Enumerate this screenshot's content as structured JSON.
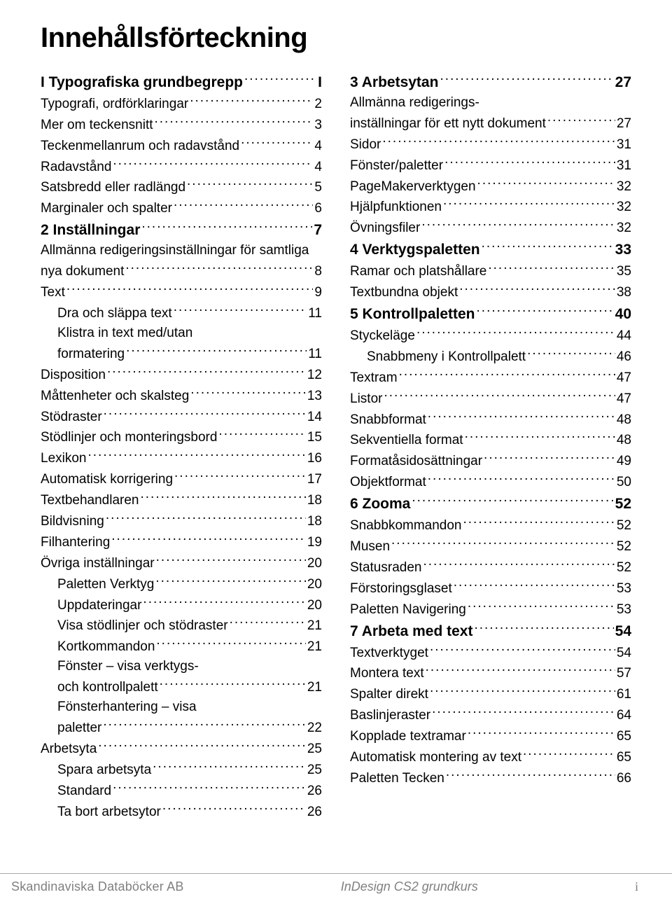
{
  "title": "Innehållsförteckning",
  "footer": {
    "left": "Skandinaviska Databöcker AB",
    "center": "InDesign CS2 grundkurs",
    "right": "i"
  },
  "left": [
    {
      "type": "section",
      "label": "I Typografiska grundbegrepp",
      "page": "I",
      "indent": 0
    },
    {
      "label": "Typografi, ordförklaringar",
      "page": "2",
      "indent": 0
    },
    {
      "label": "Mer om teckensnitt",
      "page": "3",
      "indent": 0
    },
    {
      "label": "Teckenmellanrum och radavstånd",
      "page": "4",
      "indent": 0
    },
    {
      "label": "Radavstånd",
      "page": "4",
      "indent": 0
    },
    {
      "label": "Satsbredd eller radlängd",
      "page": "5",
      "indent": 0
    },
    {
      "label": "Marginaler och spalter",
      "page": "6",
      "indent": 0
    },
    {
      "type": "section",
      "label": "2 Inställningar",
      "page": "7",
      "indent": 0
    },
    {
      "label": "Allmänna redigeringsinställningar för samtliga",
      "cont": true,
      "indent": 0
    },
    {
      "label": "nya dokument",
      "page": "8",
      "indent": 0
    },
    {
      "label": "Text",
      "page": "9",
      "indent": 0
    },
    {
      "label": "Dra och släppa text",
      "page": "11",
      "indent": 1
    },
    {
      "label": "Klistra in text med/utan",
      "cont": true,
      "indent": 1
    },
    {
      "label": "formatering",
      "page": "11",
      "indent": 1
    },
    {
      "label": "Disposition",
      "page": "12",
      "indent": 0
    },
    {
      "label": "Måttenheter och skalsteg",
      "page": "13",
      "indent": 0
    },
    {
      "label": "Stödraster",
      "page": "14",
      "indent": 0
    },
    {
      "label": "Stödlinjer och monteringsbord",
      "page": "15",
      "indent": 0
    },
    {
      "label": "Lexikon",
      "page": "16",
      "indent": 0
    },
    {
      "label": "Automatisk korrigering",
      "page": "17",
      "indent": 0
    },
    {
      "label": "Textbehandlaren",
      "page": "18",
      "indent": 0
    },
    {
      "label": "Bildvisning",
      "page": "18",
      "indent": 0
    },
    {
      "label": "Filhantering",
      "page": "19",
      "indent": 0
    },
    {
      "label": "Övriga inställningar",
      "page": "20",
      "indent": 0
    },
    {
      "label": "Paletten Verktyg",
      "page": "20",
      "indent": 1
    },
    {
      "label": "Uppdateringar",
      "page": "20",
      "indent": 1
    },
    {
      "label": "Visa stödlinjer och stödraster",
      "page": "21",
      "indent": 1
    },
    {
      "label": "Kortkommandon",
      "page": "21",
      "indent": 1
    },
    {
      "label": "Fönster – visa verktygs-",
      "cont": true,
      "indent": 1
    },
    {
      "label": "och kontrollpalett",
      "page": "21",
      "indent": 1
    },
    {
      "label": "Fönsterhantering – visa",
      "cont": true,
      "indent": 1
    },
    {
      "label": "paletter",
      "page": "22",
      "indent": 1
    },
    {
      "label": "Arbetsyta",
      "page": "25",
      "indent": 0
    },
    {
      "label": "Spara arbetsyta",
      "page": "25",
      "indent": 1
    },
    {
      "label": "Standard",
      "page": "26",
      "indent": 1
    },
    {
      "label": "Ta bort arbetsytor",
      "page": "26",
      "indent": 1
    }
  ],
  "right": [
    {
      "type": "section",
      "label": "3 Arbetsytan",
      "page": "27",
      "indent": 0
    },
    {
      "label": "Allmänna redigerings-",
      "cont": true,
      "indent": 0
    },
    {
      "label": "inställningar för ett nytt dokument",
      "page": "27",
      "indent": 0
    },
    {
      "label": "Sidor",
      "page": "31",
      "indent": 0
    },
    {
      "label": "Fönster/paletter",
      "page": "31",
      "indent": 0
    },
    {
      "label": "PageMakerverktygen",
      "page": "32",
      "indent": 0
    },
    {
      "label": "Hjälpfunktionen",
      "page": "32",
      "indent": 0
    },
    {
      "label": "Övningsfiler",
      "page": "32",
      "indent": 0
    },
    {
      "type": "section",
      "label": "4 Verktygspaletten",
      "page": "33",
      "indent": 0
    },
    {
      "label": "Ramar och platshållare",
      "page": "35",
      "indent": 0
    },
    {
      "label": "Textbundna objekt",
      "page": "38",
      "indent": 0
    },
    {
      "type": "section",
      "label": "5 Kontrollpaletten",
      "page": "40",
      "indent": 0
    },
    {
      "label": "Styckeläge",
      "page": "44",
      "indent": 0
    },
    {
      "label": "Snabbmeny i Kontrollpalett",
      "page": "46",
      "indent": 1
    },
    {
      "label": "Textram",
      "page": "47",
      "indent": 0
    },
    {
      "label": "Listor",
      "page": "47",
      "indent": 0
    },
    {
      "label": "Snabbformat",
      "page": "48",
      "indent": 0
    },
    {
      "label": "Sekventiella format",
      "page": "48",
      "indent": 0
    },
    {
      "label": "Formatåsidosättningar",
      "page": "49",
      "indent": 0
    },
    {
      "label": "Objektformat",
      "page": "50",
      "indent": 0
    },
    {
      "type": "section",
      "label": "6 Zooma",
      "page": "52",
      "indent": 0
    },
    {
      "label": "Snabbkommandon",
      "page": "52",
      "indent": 0
    },
    {
      "label": "Musen",
      "page": "52",
      "indent": 0
    },
    {
      "label": "Statusraden",
      "page": "52",
      "indent": 0
    },
    {
      "label": "Förstoringsglaset",
      "page": "53",
      "indent": 0
    },
    {
      "label": "Paletten Navigering",
      "page": "53",
      "indent": 0
    },
    {
      "type": "section",
      "label": "7 Arbeta med text",
      "page": "54",
      "indent": 0
    },
    {
      "label": "Textverktyget",
      "page": "54",
      "indent": 0
    },
    {
      "label": "Montera text",
      "page": "57",
      "indent": 0
    },
    {
      "label": "Spalter direkt",
      "page": "61",
      "indent": 0
    },
    {
      "label": "Baslinjeraster",
      "page": "64",
      "indent": 0
    },
    {
      "label": "Kopplade textramar",
      "page": "65",
      "indent": 0
    },
    {
      "label": "Automatisk montering av text",
      "page": "65",
      "indent": 0
    },
    {
      "label": "Paletten Tecken",
      "page": "66",
      "indent": 0
    }
  ]
}
